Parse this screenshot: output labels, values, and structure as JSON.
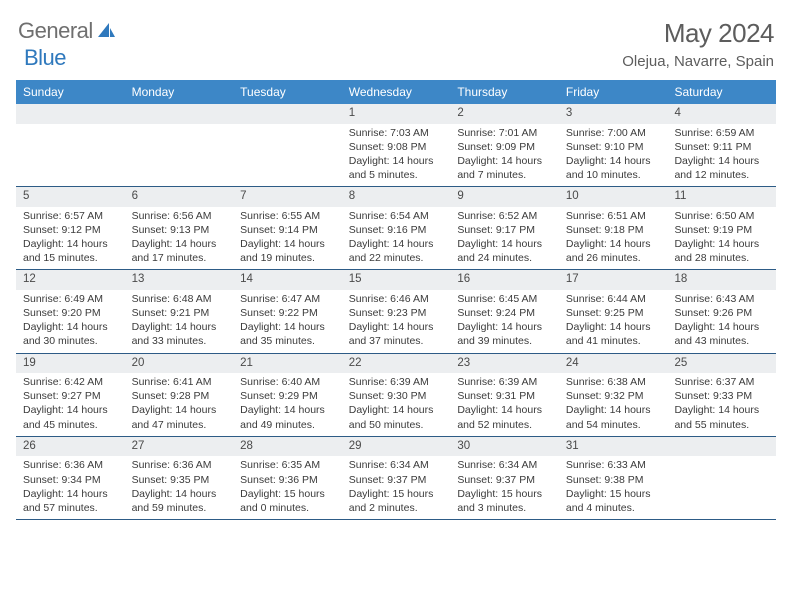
{
  "logo": {
    "part1": "General",
    "part2": "Blue"
  },
  "title": "May 2024",
  "location": "Olejua, Navarre, Spain",
  "colors": {
    "headerBg": "#3d87c7",
    "headerText": "#ffffff",
    "dayNumBg": "#eceef0",
    "rowBorder": "#2d5b86",
    "logoGray": "#6f6f6f",
    "logoBlue": "#2f79bd"
  },
  "dayNames": [
    "Sunday",
    "Monday",
    "Tuesday",
    "Wednesday",
    "Thursday",
    "Friday",
    "Saturday"
  ],
  "weeks": [
    [
      null,
      null,
      null,
      {
        "n": "1",
        "sr": "7:03 AM",
        "ss": "9:08 PM",
        "dl": "14 hours and 5 minutes."
      },
      {
        "n": "2",
        "sr": "7:01 AM",
        "ss": "9:09 PM",
        "dl": "14 hours and 7 minutes."
      },
      {
        "n": "3",
        "sr": "7:00 AM",
        "ss": "9:10 PM",
        "dl": "14 hours and 10 minutes."
      },
      {
        "n": "4",
        "sr": "6:59 AM",
        "ss": "9:11 PM",
        "dl": "14 hours and 12 minutes."
      }
    ],
    [
      {
        "n": "5",
        "sr": "6:57 AM",
        "ss": "9:12 PM",
        "dl": "14 hours and 15 minutes."
      },
      {
        "n": "6",
        "sr": "6:56 AM",
        "ss": "9:13 PM",
        "dl": "14 hours and 17 minutes."
      },
      {
        "n": "7",
        "sr": "6:55 AM",
        "ss": "9:14 PM",
        "dl": "14 hours and 19 minutes."
      },
      {
        "n": "8",
        "sr": "6:54 AM",
        "ss": "9:16 PM",
        "dl": "14 hours and 22 minutes."
      },
      {
        "n": "9",
        "sr": "6:52 AM",
        "ss": "9:17 PM",
        "dl": "14 hours and 24 minutes."
      },
      {
        "n": "10",
        "sr": "6:51 AM",
        "ss": "9:18 PM",
        "dl": "14 hours and 26 minutes."
      },
      {
        "n": "11",
        "sr": "6:50 AM",
        "ss": "9:19 PM",
        "dl": "14 hours and 28 minutes."
      }
    ],
    [
      {
        "n": "12",
        "sr": "6:49 AM",
        "ss": "9:20 PM",
        "dl": "14 hours and 30 minutes."
      },
      {
        "n": "13",
        "sr": "6:48 AM",
        "ss": "9:21 PM",
        "dl": "14 hours and 33 minutes."
      },
      {
        "n": "14",
        "sr": "6:47 AM",
        "ss": "9:22 PM",
        "dl": "14 hours and 35 minutes."
      },
      {
        "n": "15",
        "sr": "6:46 AM",
        "ss": "9:23 PM",
        "dl": "14 hours and 37 minutes."
      },
      {
        "n": "16",
        "sr": "6:45 AM",
        "ss": "9:24 PM",
        "dl": "14 hours and 39 minutes."
      },
      {
        "n": "17",
        "sr": "6:44 AM",
        "ss": "9:25 PM",
        "dl": "14 hours and 41 minutes."
      },
      {
        "n": "18",
        "sr": "6:43 AM",
        "ss": "9:26 PM",
        "dl": "14 hours and 43 minutes."
      }
    ],
    [
      {
        "n": "19",
        "sr": "6:42 AM",
        "ss": "9:27 PM",
        "dl": "14 hours and 45 minutes."
      },
      {
        "n": "20",
        "sr": "6:41 AM",
        "ss": "9:28 PM",
        "dl": "14 hours and 47 minutes."
      },
      {
        "n": "21",
        "sr": "6:40 AM",
        "ss": "9:29 PM",
        "dl": "14 hours and 49 minutes."
      },
      {
        "n": "22",
        "sr": "6:39 AM",
        "ss": "9:30 PM",
        "dl": "14 hours and 50 minutes."
      },
      {
        "n": "23",
        "sr": "6:39 AM",
        "ss": "9:31 PM",
        "dl": "14 hours and 52 minutes."
      },
      {
        "n": "24",
        "sr": "6:38 AM",
        "ss": "9:32 PM",
        "dl": "14 hours and 54 minutes."
      },
      {
        "n": "25",
        "sr": "6:37 AM",
        "ss": "9:33 PM",
        "dl": "14 hours and 55 minutes."
      }
    ],
    [
      {
        "n": "26",
        "sr": "6:36 AM",
        "ss": "9:34 PM",
        "dl": "14 hours and 57 minutes."
      },
      {
        "n": "27",
        "sr": "6:36 AM",
        "ss": "9:35 PM",
        "dl": "14 hours and 59 minutes."
      },
      {
        "n": "28",
        "sr": "6:35 AM",
        "ss": "9:36 PM",
        "dl": "15 hours and 0 minutes."
      },
      {
        "n": "29",
        "sr": "6:34 AM",
        "ss": "9:37 PM",
        "dl": "15 hours and 2 minutes."
      },
      {
        "n": "30",
        "sr": "6:34 AM",
        "ss": "9:37 PM",
        "dl": "15 hours and 3 minutes."
      },
      {
        "n": "31",
        "sr": "6:33 AM",
        "ss": "9:38 PM",
        "dl": "15 hours and 4 minutes."
      },
      null
    ]
  ],
  "labels": {
    "sunrise": "Sunrise:",
    "sunset": "Sunset:",
    "daylight": "Daylight:"
  }
}
